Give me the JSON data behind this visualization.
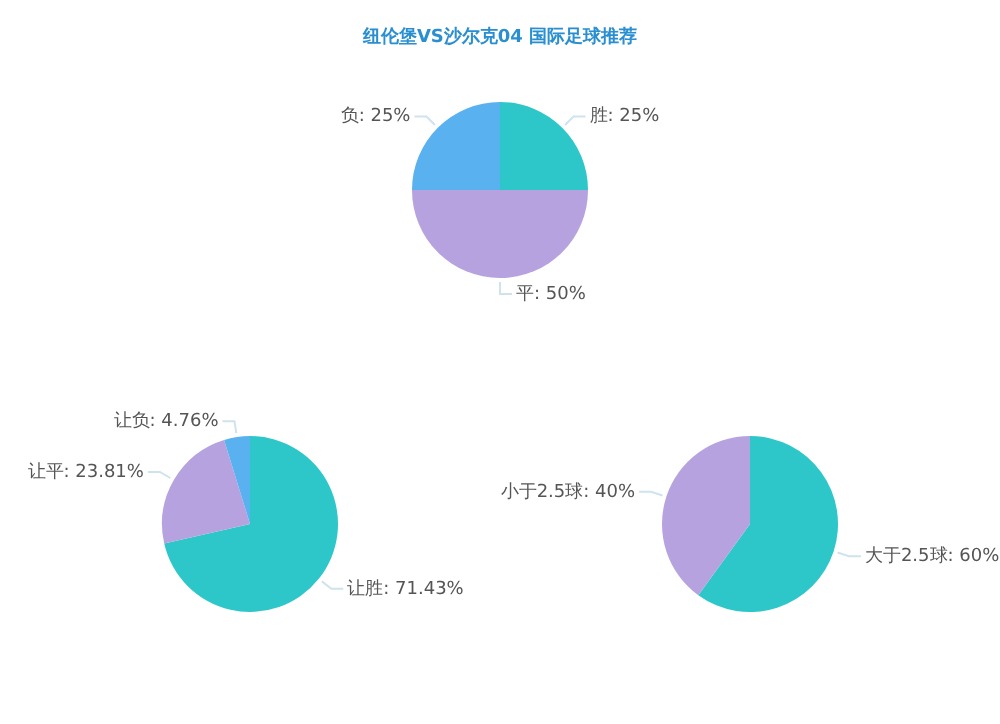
{
  "chart_data": [
    {
      "type": "pie",
      "title": "纽伦堡VS沙尔克04 国际足球推荐",
      "categories": [
        "胜",
        "平",
        "负"
      ],
      "values": [
        25,
        50,
        25
      ],
      "colors": [
        "#2ec7c9",
        "#b6a2de",
        "#5ab1ef"
      ],
      "value_labels": [
        "25%",
        "50%",
        "25%"
      ]
    },
    {
      "type": "pie",
      "categories": [
        "让胜",
        "让平",
        "让负"
      ],
      "values": [
        71.43,
        23.81,
        4.76
      ],
      "colors": [
        "#2ec7c9",
        "#b6a2de",
        "#5ab1ef"
      ],
      "value_labels": [
        "71.43%",
        "23.81%",
        "4.76%"
      ]
    },
    {
      "type": "pie",
      "categories": [
        "大于2.5球",
        "小于2.5球"
      ],
      "values": [
        60,
        40
      ],
      "colors": [
        "#2ec7c9",
        "#b6a2de"
      ],
      "value_labels": [
        "60%",
        "40%"
      ]
    }
  ]
}
